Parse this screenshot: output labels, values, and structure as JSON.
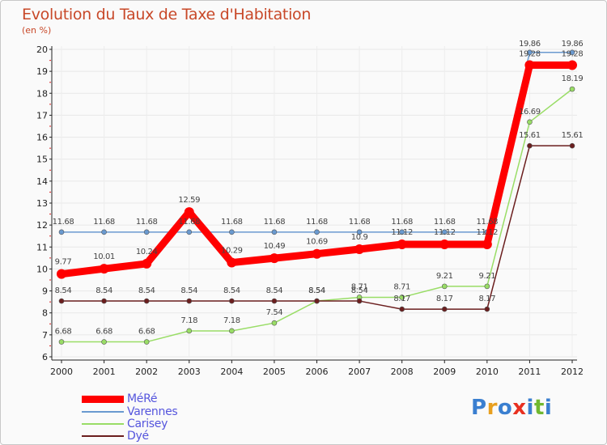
{
  "chart_data": {
    "type": "line",
    "title": "Evolution du Taux de Taxe d'Habitation",
    "unit": "(en %)",
    "x": [
      "2000",
      "2001",
      "2002",
      "2003",
      "2004",
      "2005",
      "2006",
      "2007",
      "2008",
      "2009",
      "2010",
      "2011",
      "2012"
    ],
    "ylim": [
      6,
      20
    ],
    "yticks": [
      "6",
      "7",
      "8",
      "9",
      "10",
      "11",
      "12",
      "13",
      "14",
      "15",
      "16",
      "17",
      "18",
      "19",
      "20"
    ],
    "series": [
      {
        "name": "MéRé",
        "color": "#ff0000",
        "values": [
          9.77,
          10.01,
          10.24,
          12.59,
          10.29,
          10.49,
          10.69,
          10.9,
          11.12,
          11.12,
          11.12,
          19.28,
          19.28
        ],
        "labels": [
          "9.77",
          "10.01",
          "10.24",
          "12.59",
          "10.29",
          "10.49",
          "10.69",
          "10.9",
          "11.12",
          "11.12",
          "11.12",
          "19.28",
          "19.28"
        ]
      },
      {
        "name": "Varennes",
        "color": "#6a9ad0",
        "values": [
          11.68,
          11.68,
          11.68,
          11.68,
          11.68,
          11.68,
          11.68,
          11.68,
          11.68,
          11.68,
          11.68,
          19.86,
          19.86
        ],
        "labels": [
          "11.68",
          "11.68",
          "11.68",
          "11.68",
          "11.68",
          "11.68",
          "11.68",
          "11.68",
          "11.68",
          "11.68",
          "11.68",
          "19.86",
          "19.86"
        ]
      },
      {
        "name": "Carisey",
        "color": "#99dd66",
        "values": [
          6.68,
          6.68,
          6.68,
          7.18,
          7.18,
          7.54,
          8.54,
          8.71,
          8.71,
          9.21,
          9.21,
          16.69,
          18.19
        ],
        "labels": [
          "6.68",
          "6.68",
          "6.68",
          "7.18",
          "7.18",
          "7.54",
          "8.54",
          "8.71",
          "8.71",
          "9.21",
          "9.21",
          "16.69",
          "18.19"
        ]
      },
      {
        "name": "Dyé",
        "color": "#6b1e1e",
        "values": [
          8.54,
          8.54,
          8.54,
          8.54,
          8.54,
          8.54,
          8.54,
          8.54,
          8.17,
          8.17,
          8.17,
          15.61,
          15.61
        ],
        "labels": [
          "8.54",
          "8.54",
          "8.54",
          "8.54",
          "8.54",
          "8.54",
          "8.54",
          "8.54",
          "8.17",
          "8.17",
          "8.17",
          "15.61",
          "15.61"
        ]
      }
    ]
  },
  "logo": {
    "text": "Proxiti"
  }
}
